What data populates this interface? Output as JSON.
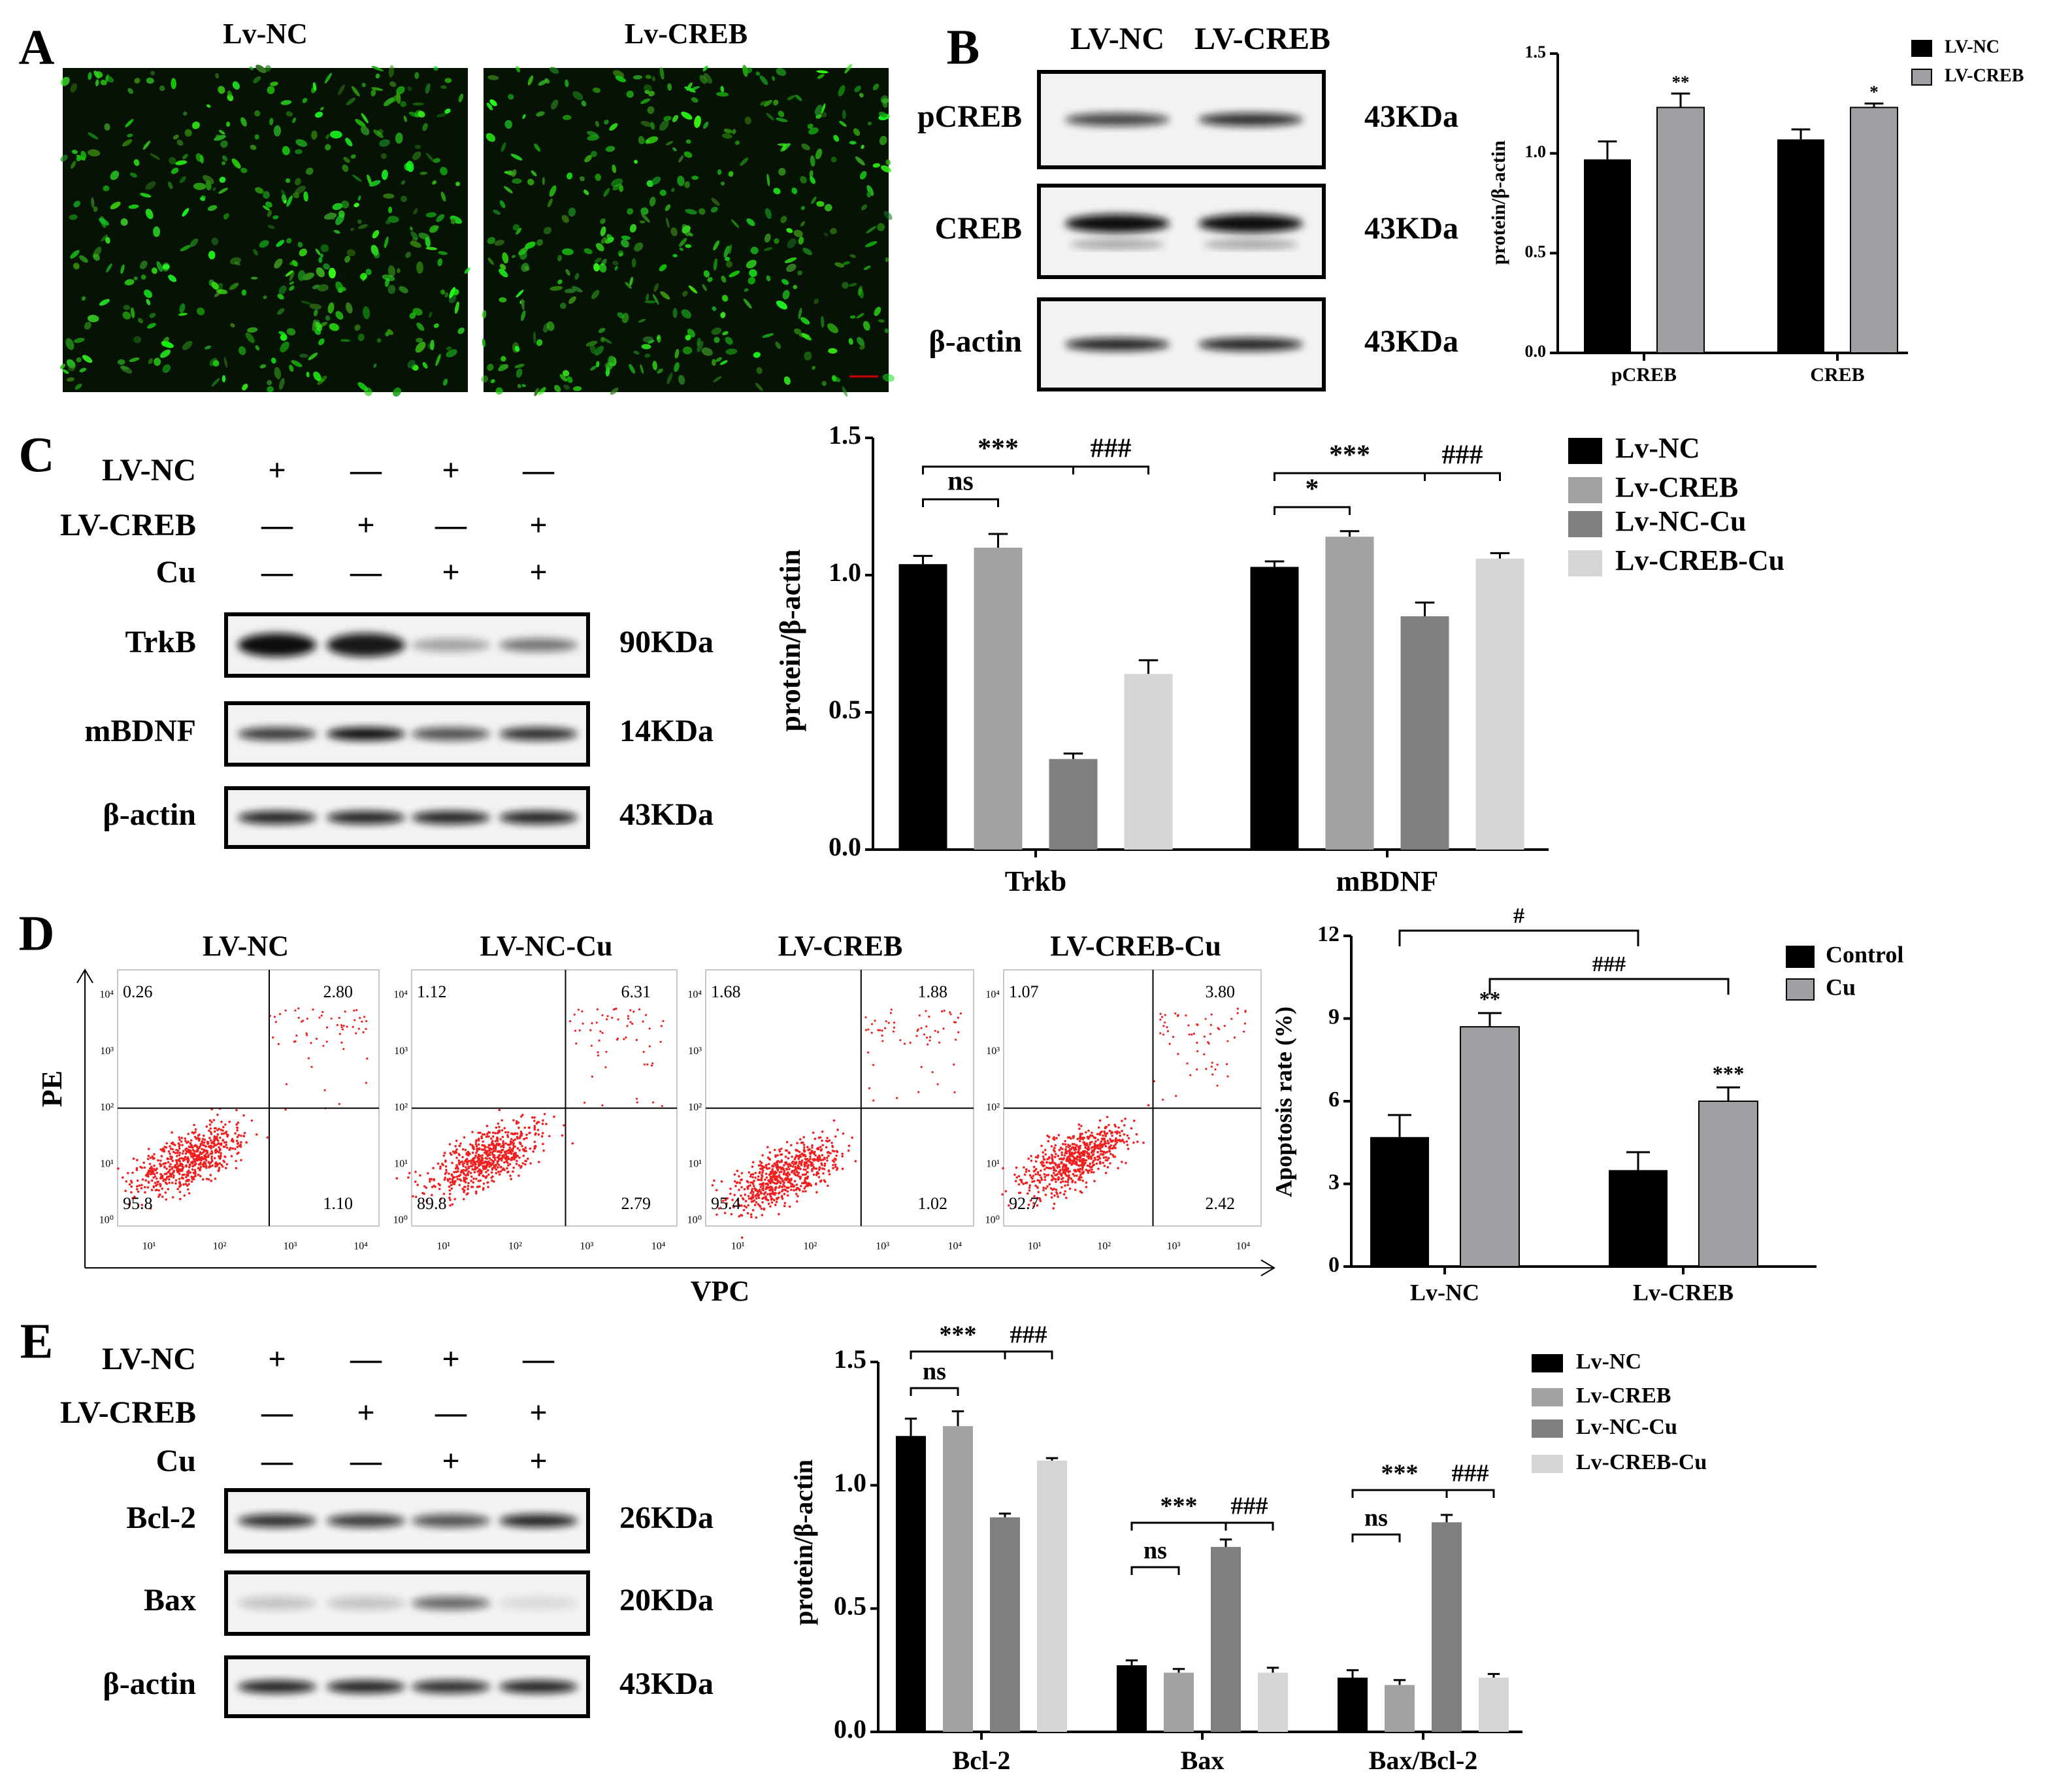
{
  "panel_labels": [
    "A",
    "B",
    "C",
    "D",
    "E"
  ],
  "panel_a": {
    "titles": [
      "Lv-NC",
      "Lv-CREB"
    ]
  },
  "panel_b_blot": {
    "lanes": [
      "LV-NC",
      "LV-CREB"
    ],
    "rows": [
      {
        "protein": "pCREB",
        "size": "43KDa"
      },
      {
        "protein": "CREB",
        "size": "43KDa"
      },
      {
        "protein": "β-actin",
        "size": "43KDa"
      }
    ]
  },
  "panel_c_blot": {
    "treatments": [
      {
        "name": "LV-NC",
        "marks": [
          "+",
          "—",
          "+",
          "—"
        ]
      },
      {
        "name": "LV-CREB",
        "marks": [
          "—",
          "+",
          "—",
          "+"
        ]
      },
      {
        "name": "Cu",
        "marks": [
          "—",
          "—",
          "+",
          "+"
        ]
      }
    ],
    "rows": [
      {
        "protein": "TrkB",
        "size": "90KDa"
      },
      {
        "protein": "mBDNF",
        "size": "14KDa"
      },
      {
        "protein": "β-actin",
        "size": "43KDa"
      }
    ]
  },
  "panel_d_flow": {
    "y_label": "PE",
    "x_label": "VPC",
    "ticks": [
      "10⁰",
      "10¹",
      "10²",
      "10³",
      "10⁴"
    ],
    "plots": [
      {
        "title": "LV-NC",
        "quadrants": [
          "0.26",
          "2.80",
          "95.8",
          "1.10"
        ]
      },
      {
        "title": "LV-NC-Cu",
        "quadrants": [
          "1.12",
          "6.31",
          "89.8",
          "2.79"
        ]
      },
      {
        "title": "LV-CREB",
        "quadrants": [
          "1.68",
          "1.88",
          "95.4",
          "1.02"
        ]
      },
      {
        "title": "LV-CREB-Cu",
        "quadrants": [
          "1.07",
          "3.80",
          "92.7",
          "2.42"
        ]
      }
    ]
  },
  "panel_e_blot": {
    "treatments": [
      {
        "name": "LV-NC",
        "marks": [
          "+",
          "—",
          "+",
          "—"
        ]
      },
      {
        "name": "LV-CREB",
        "marks": [
          "—",
          "+",
          "—",
          "+"
        ]
      },
      {
        "name": "Cu",
        "marks": [
          "—",
          "—",
          "+",
          "+"
        ]
      }
    ],
    "rows": [
      {
        "protein": "Bcl-2",
        "size": "26KDa"
      },
      {
        "protein": "Bax",
        "size": "20KDa"
      },
      {
        "protein": "β-actin",
        "size": "43KDa"
      }
    ]
  },
  "chart_data": [
    {
      "type": "bar",
      "y_label": "protein/β-actin",
      "categories": [
        "pCREB",
        "CREB"
      ],
      "ylim": [
        0,
        1.5
      ],
      "yticks": [
        {
          "value": 0,
          "label": "0.0"
        },
        {
          "value": 0.5,
          "label": "0.5"
        },
        {
          "value": 1,
          "label": "1.0"
        },
        {
          "value": 1.5,
          "label": "1.5"
        }
      ],
      "series": [
        {
          "name": "LV-NC",
          "color": "#000000",
          "values": [
            0.97,
            1.07
          ],
          "errors": [
            0.09,
            0.05
          ]
        },
        {
          "name": "LV-CREB",
          "color": "#a0a0a4",
          "values": [
            1.23,
            1.23
          ],
          "errors": [
            0.07,
            0.02
          ]
        }
      ],
      "annotations": [
        "**",
        "*"
      ]
    },
    {
      "type": "bar",
      "y_label": "protein/β-actin",
      "categories": [
        "Trkb",
        "mBDNF"
      ],
      "ylim": [
        0,
        1.5
      ],
      "yticks": [
        {
          "value": 0,
          "label": "0.0"
        },
        {
          "value": 0.5,
          "label": "0.5"
        },
        {
          "value": 1,
          "label": "1.0"
        },
        {
          "value": 1.5,
          "label": "1.5"
        }
      ],
      "series": [
        {
          "name": "Lv-NC",
          "color": "#000000",
          "values": [
            1.04,
            1.03
          ],
          "errors": [
            0.03,
            0.02
          ]
        },
        {
          "name": "Lv-CREB",
          "color": "#a2a2a4",
          "values": [
            1.1,
            1.14
          ],
          "errors": [
            0.05,
            0.02
          ]
        },
        {
          "name": "Lv-NC-Cu",
          "color": "#7f7f7f",
          "values": [
            0.33,
            0.85
          ],
          "errors": [
            0.02,
            0.05
          ]
        },
        {
          "name": "Lv-CREB-Cu",
          "color": "#d5d5d5",
          "values": [
            0.64,
            1.06
          ],
          "errors": [
            0.05,
            0.02
          ]
        }
      ],
      "annotations": [
        "***",
        "###",
        "ns",
        "***",
        "###",
        "*"
      ]
    },
    {
      "type": "bar",
      "y_label": "Apoptosis rate (%)",
      "categories": [
        "Lv-NC",
        "Lv-CREB"
      ],
      "ylim": [
        0,
        12
      ],
      "yticks": [
        0,
        3,
        6,
        9,
        12
      ],
      "series": [
        {
          "name": "Control",
          "color": "#000000",
          "values": [
            4.7,
            3.5
          ],
          "errors": [
            0.8,
            0.65
          ]
        },
        {
          "name": "Cu",
          "color": "#a0a0a4",
          "values": [
            8.7,
            6.0
          ],
          "errors": [
            0.5,
            0.5
          ]
        }
      ],
      "annotations": [
        "**",
        "***",
        "#",
        "###"
      ]
    },
    {
      "type": "bar",
      "y_label": "protein/β-actin",
      "categories": [
        "Bcl-2",
        "Bax",
        "Bax/Bcl-2"
      ],
      "ylim": [
        0,
        1.5
      ],
      "yticks": [
        {
          "value": 0,
          "label": "0.0"
        },
        {
          "value": 0.5,
          "label": "0.5"
        },
        {
          "value": 1,
          "label": "1.0"
        },
        {
          "value": 1.5,
          "label": "1.5"
        }
      ],
      "series": [
        {
          "name": "Lv-NC",
          "color": "#000000",
          "values": [
            1.2,
            0.27,
            0.22
          ],
          "errors": [
            0.07,
            0.02,
            0.03
          ]
        },
        {
          "name": "Lv-CREB",
          "color": "#a2a2a4",
          "values": [
            1.24,
            0.24,
            0.19
          ],
          "errors": [
            0.06,
            0.015,
            0.02
          ]
        },
        {
          "name": "Lv-NC-Cu",
          "color": "#7f7f7f",
          "values": [
            0.87,
            0.75,
            0.85
          ],
          "errors": [
            0.015,
            0.03,
            0.03
          ]
        },
        {
          "name": "Lv-CREB-Cu",
          "color": "#d5d5d5",
          "values": [
            1.1,
            0.24,
            0.22
          ],
          "errors": [
            0.01,
            0.02,
            0.015
          ]
        }
      ],
      "annotations": [
        "***",
        "###",
        "ns",
        "***",
        "###",
        "ns",
        "***",
        "###",
        "ns"
      ]
    }
  ]
}
